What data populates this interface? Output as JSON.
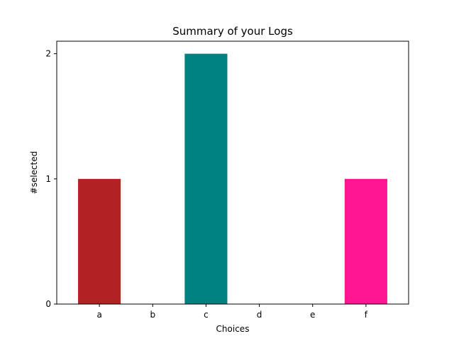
{
  "chart_data": {
    "type": "bar",
    "title": "Summary of your Logs",
    "xlabel": "Choices",
    "ylabel": "#selected",
    "categories": [
      "a",
      "b",
      "c",
      "d",
      "e",
      "f"
    ],
    "values": [
      1,
      0,
      2,
      0,
      0,
      1
    ],
    "colors": [
      "#b22222",
      "#000000",
      "#008080",
      "#000000",
      "#000000",
      "#ff1493"
    ],
    "ylim": [
      0,
      2.1
    ],
    "yticks": [
      0,
      1,
      2
    ],
    "grid": false,
    "legend": "none"
  }
}
